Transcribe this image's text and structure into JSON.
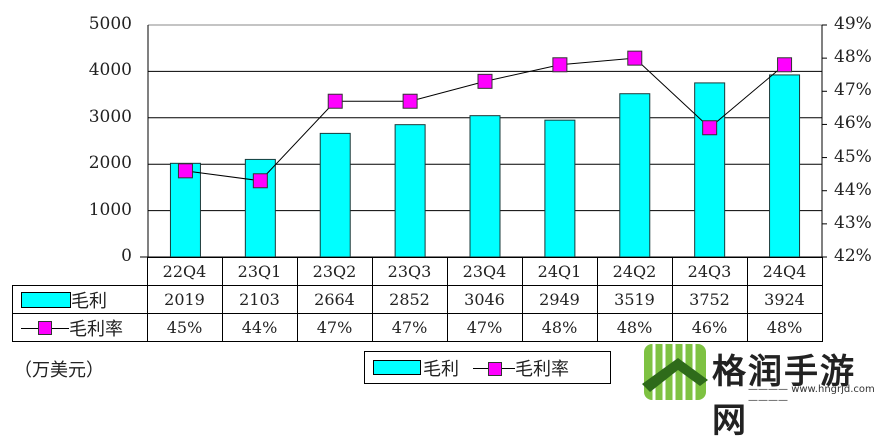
{
  "chart_data": {
    "type": "bar+line",
    "title": "",
    "categories": [
      "22Q4",
      "23Q1",
      "23Q2",
      "23Q3",
      "23Q4",
      "24Q1",
      "24Q2",
      "24Q3",
      "24Q4"
    ],
    "series": [
      {
        "name": "毛利",
        "type": "bar",
        "axis": "left",
        "color": "#00FFFF",
        "values": [
          2019,
          2103,
          2664,
          2852,
          3046,
          2949,
          3519,
          3752,
          3924
        ]
      },
      {
        "name": "毛利率",
        "type": "line",
        "axis": "right",
        "color": "#FF00FF",
        "values": [
          44.6,
          44.3,
          46.7,
          46.7,
          47.3,
          47.8,
          48.0,
          45.9,
          47.8
        ],
        "labels": [
          "45%",
          "44%",
          "47%",
          "47%",
          "47%",
          "48%",
          "48%",
          "46%",
          "48%"
        ]
      }
    ],
    "ylabel": "（万美元）",
    "ylim": [
      0,
      5000
    ],
    "y2lim": [
      42,
      49
    ],
    "y_ticks": [
      "0",
      "1000",
      "2000",
      "3000",
      "4000",
      "5000"
    ],
    "y2_ticks": [
      "42%",
      "43%",
      "44%",
      "45%",
      "46%",
      "47%",
      "48%",
      "49%"
    ],
    "grid": true,
    "legend_position": "bottom",
    "data_table": true
  },
  "table": {
    "categories": [
      "22Q4",
      "23Q1",
      "23Q2",
      "23Q3",
      "23Q4",
      "24Q1",
      "24Q2",
      "24Q3",
      "24Q4"
    ],
    "row_gross_label": "毛利",
    "row_gross": [
      "2019",
      "2103",
      "2664",
      "2852",
      "3046",
      "2949",
      "3519",
      "3752",
      "3924"
    ],
    "row_margin_label": "毛利率",
    "row_margin": [
      "45%",
      "44%",
      "47%",
      "47%",
      "47%",
      "48%",
      "48%",
      "46%",
      "48%"
    ]
  },
  "unit_label": "（万美元）",
  "legend": {
    "bar_label": "毛利",
    "line_label": "毛利率"
  },
  "watermark": {
    "text": "格润手游网",
    "url": "www.hngrjd.com"
  }
}
